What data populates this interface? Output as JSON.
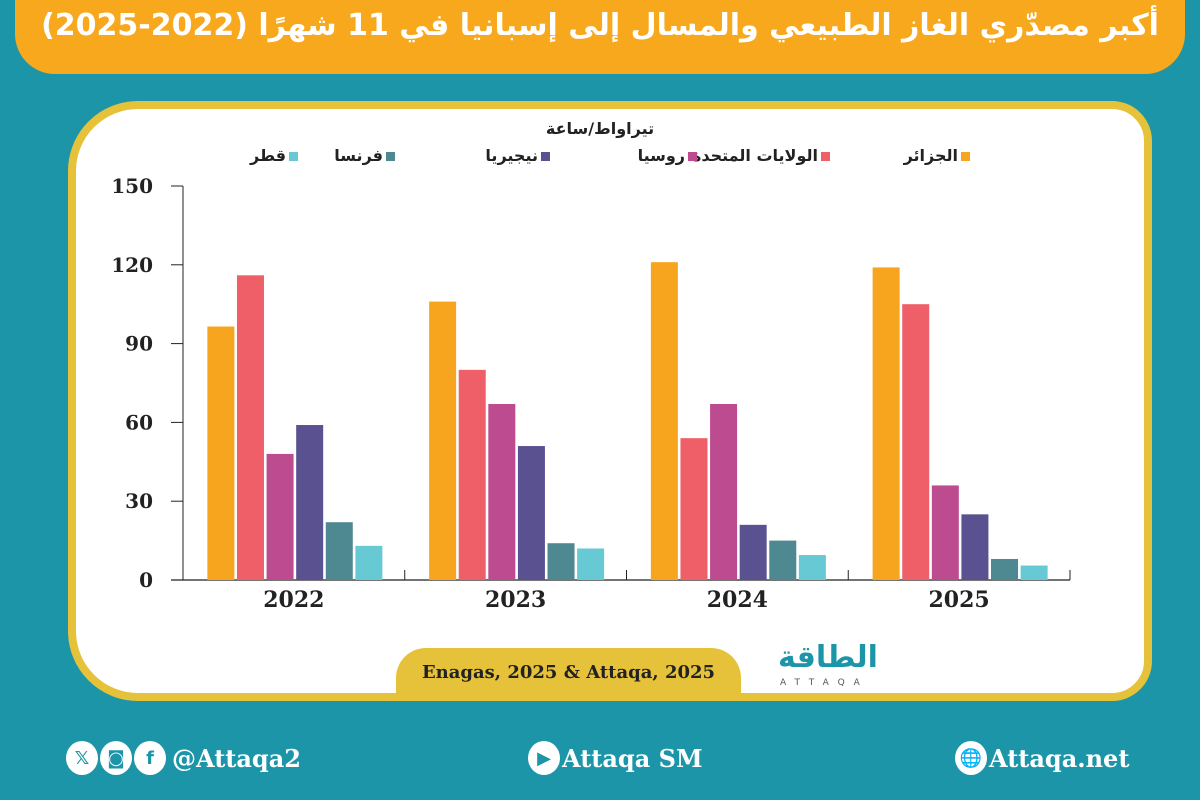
{
  "title": "أكبر مصدّري الغاز الطبيعي والمسال إلى إسبانيا في 11 شهرًا (2022-2025)",
  "source": "Enagas, 2025 & Attaqa, 2025",
  "logo": {
    "arabic": "الطاقة",
    "latin": "ATTAQA"
  },
  "footer": {
    "social_handle": "@Attaqa2",
    "youtube": "Attaqa SM",
    "website": "Attaqa.net",
    "icons": [
      "x-icon",
      "instagram-icon",
      "facebook-icon",
      "youtube-icon",
      "globe-icon"
    ]
  },
  "colors": {
    "background": "#1d95a9",
    "title_bar": "#f8a81c",
    "card_border": "#e6c23a"
  },
  "chart_data": {
    "type": "bar",
    "ylabel": "تيراواط/ساعة",
    "ylim": [
      0,
      150
    ],
    "yticks": [
      "0",
      "30",
      "60",
      "90",
      "120",
      "150"
    ],
    "grid": false,
    "legend_position": "top",
    "categories": [
      "2022",
      "2023",
      "2024",
      "2025"
    ],
    "series": [
      {
        "name": "الجزائر",
        "color": "#f7a51f",
        "values": [
          96.5,
          106,
          121,
          119
        ]
      },
      {
        "name": "الولايات المتحدة",
        "color": "#ef5f67",
        "values": [
          116,
          80,
          54,
          105
        ]
      },
      {
        "name": "روسيا",
        "color": "#bd4b8f",
        "values": [
          48,
          67,
          67,
          36
        ]
      },
      {
        "name": "نيجيريا",
        "color": "#5a5190",
        "values": [
          59,
          51,
          21,
          25
        ]
      },
      {
        "name": "فرنسا",
        "color": "#4e8890",
        "values": [
          22,
          14,
          15,
          8
        ]
      },
      {
        "name": "قطر",
        "color": "#67c9d3",
        "values": [
          13,
          12,
          9.5,
          5.5
        ]
      }
    ]
  }
}
